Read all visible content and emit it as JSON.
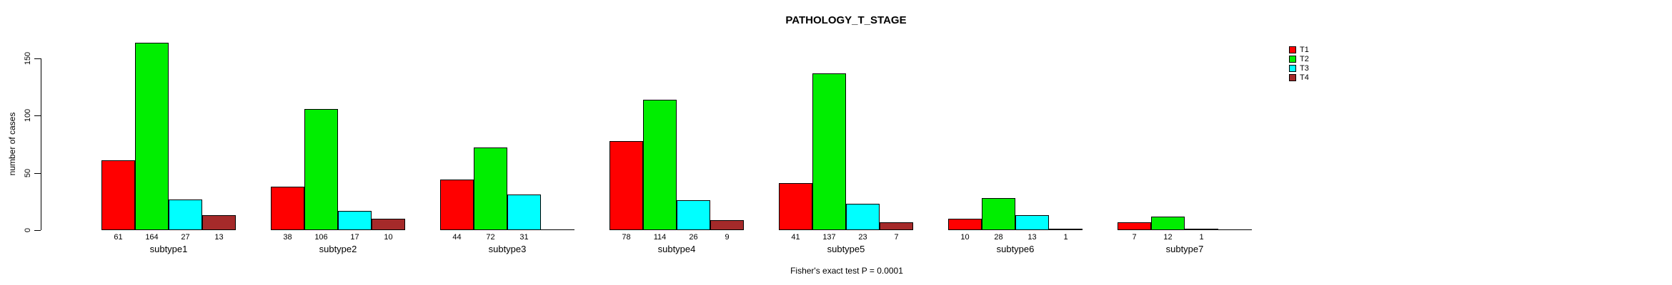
{
  "title": "PATHOLOGY_T_STAGE",
  "footer": "Fisher's exact test P = 0.0001",
  "colors": {
    "t1": "#FF0000",
    "t2": "#00EE00",
    "t3": "#00FFFF",
    "t4": "#A52A2A",
    "axis": "#000000",
    "background": "#FFFFFF"
  },
  "chart_data": {
    "type": "bar",
    "title": "PATHOLOGY_T_STAGE",
    "xlabel": "",
    "ylabel": "number of cases",
    "ylim": [
      0,
      168
    ],
    "yticks": [
      0,
      50,
      100,
      150
    ],
    "grid": false,
    "legend_position": "right",
    "annotation": "Fisher's exact test P = 0.0001",
    "categories": [
      "subtype1",
      "subtype2",
      "subtype3",
      "subtype4",
      "subtype5",
      "subtype6",
      "subtype7"
    ],
    "series": [
      {
        "name": "T1",
        "color": "#FF0000",
        "values": [
          61,
          38,
          44,
          78,
          41,
          10,
          7
        ]
      },
      {
        "name": "T2",
        "color": "#00EE00",
        "values": [
          164,
          106,
          72,
          114,
          137,
          28,
          12
        ]
      },
      {
        "name": "T3",
        "color": "#00FFFF",
        "values": [
          27,
          17,
          31,
          26,
          23,
          13,
          1
        ]
      },
      {
        "name": "T4",
        "color": "#A52A2A",
        "values": [
          13,
          10,
          0,
          9,
          7,
          1,
          0
        ]
      }
    ],
    "value_labels_shown_only_when_positive": true
  }
}
